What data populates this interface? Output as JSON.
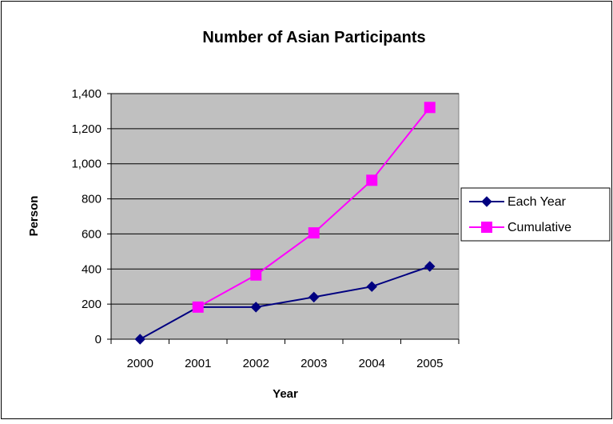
{
  "chart_data": {
    "type": "line",
    "title": "Number of Asian Participants",
    "xlabel": "Year",
    "ylabel": "Person",
    "categories": [
      "2000",
      "2001",
      "2002",
      "2003",
      "2004",
      "2005"
    ],
    "ylim": [
      0,
      1400
    ],
    "yticks": [
      0,
      200,
      400,
      600,
      800,
      1000,
      1200,
      1400
    ],
    "ytick_labels": [
      "0",
      "200",
      "400",
      "600",
      "800",
      "1,000",
      "1,200",
      "1,400"
    ],
    "grid": "horizontal",
    "legend_position": "right",
    "plot_background": "#c0c0c0",
    "series": [
      {
        "name": "Each Year",
        "color": "#000080",
        "marker": "diamond",
        "values": [
          0,
          183,
          183,
          240,
          300,
          415
        ]
      },
      {
        "name": "Cumulative",
        "color": "#ff00ff",
        "marker": "square",
        "values": [
          null,
          183,
          366,
          606,
          906,
          1321
        ]
      }
    ]
  }
}
